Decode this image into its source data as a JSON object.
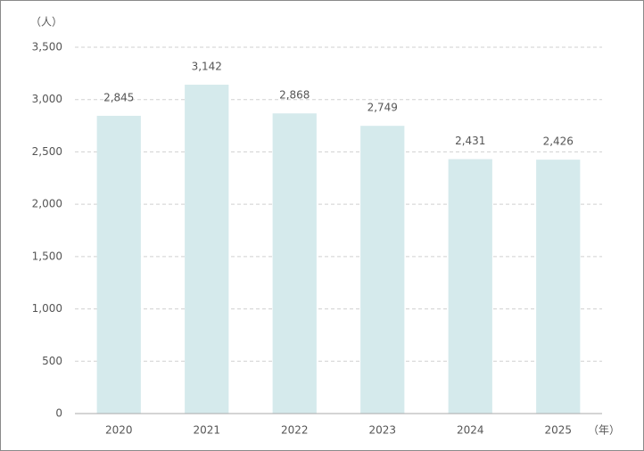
{
  "chart_data": {
    "type": "bar",
    "ylabel": "（人）",
    "xlabel": "（年）",
    "categories": [
      "2020",
      "2021",
      "2022",
      "2023",
      "2024",
      "2025"
    ],
    "values": [
      2845,
      3142,
      2868,
      2749,
      2431,
      2426
    ],
    "value_labels": [
      "2,845",
      "3,142",
      "2,868",
      "2,749",
      "2,431",
      "2,426"
    ],
    "color": "#d5eaec",
    "ylim": [
      0,
      3500
    ],
    "yticks": [
      0,
      500,
      {
        "value": 1000,
        "label": "1,000"
      },
      {
        "value": 1500,
        "label": "1,500"
      },
      {
        "value": 2000,
        "label": "2,000"
      },
      {
        "value": 2500,
        "label": "2,500"
      },
      {
        "value": 3000,
        "label": "3,000"
      },
      {
        "value": 3500,
        "label": "3,500"
      }
    ],
    "grid": true
  }
}
